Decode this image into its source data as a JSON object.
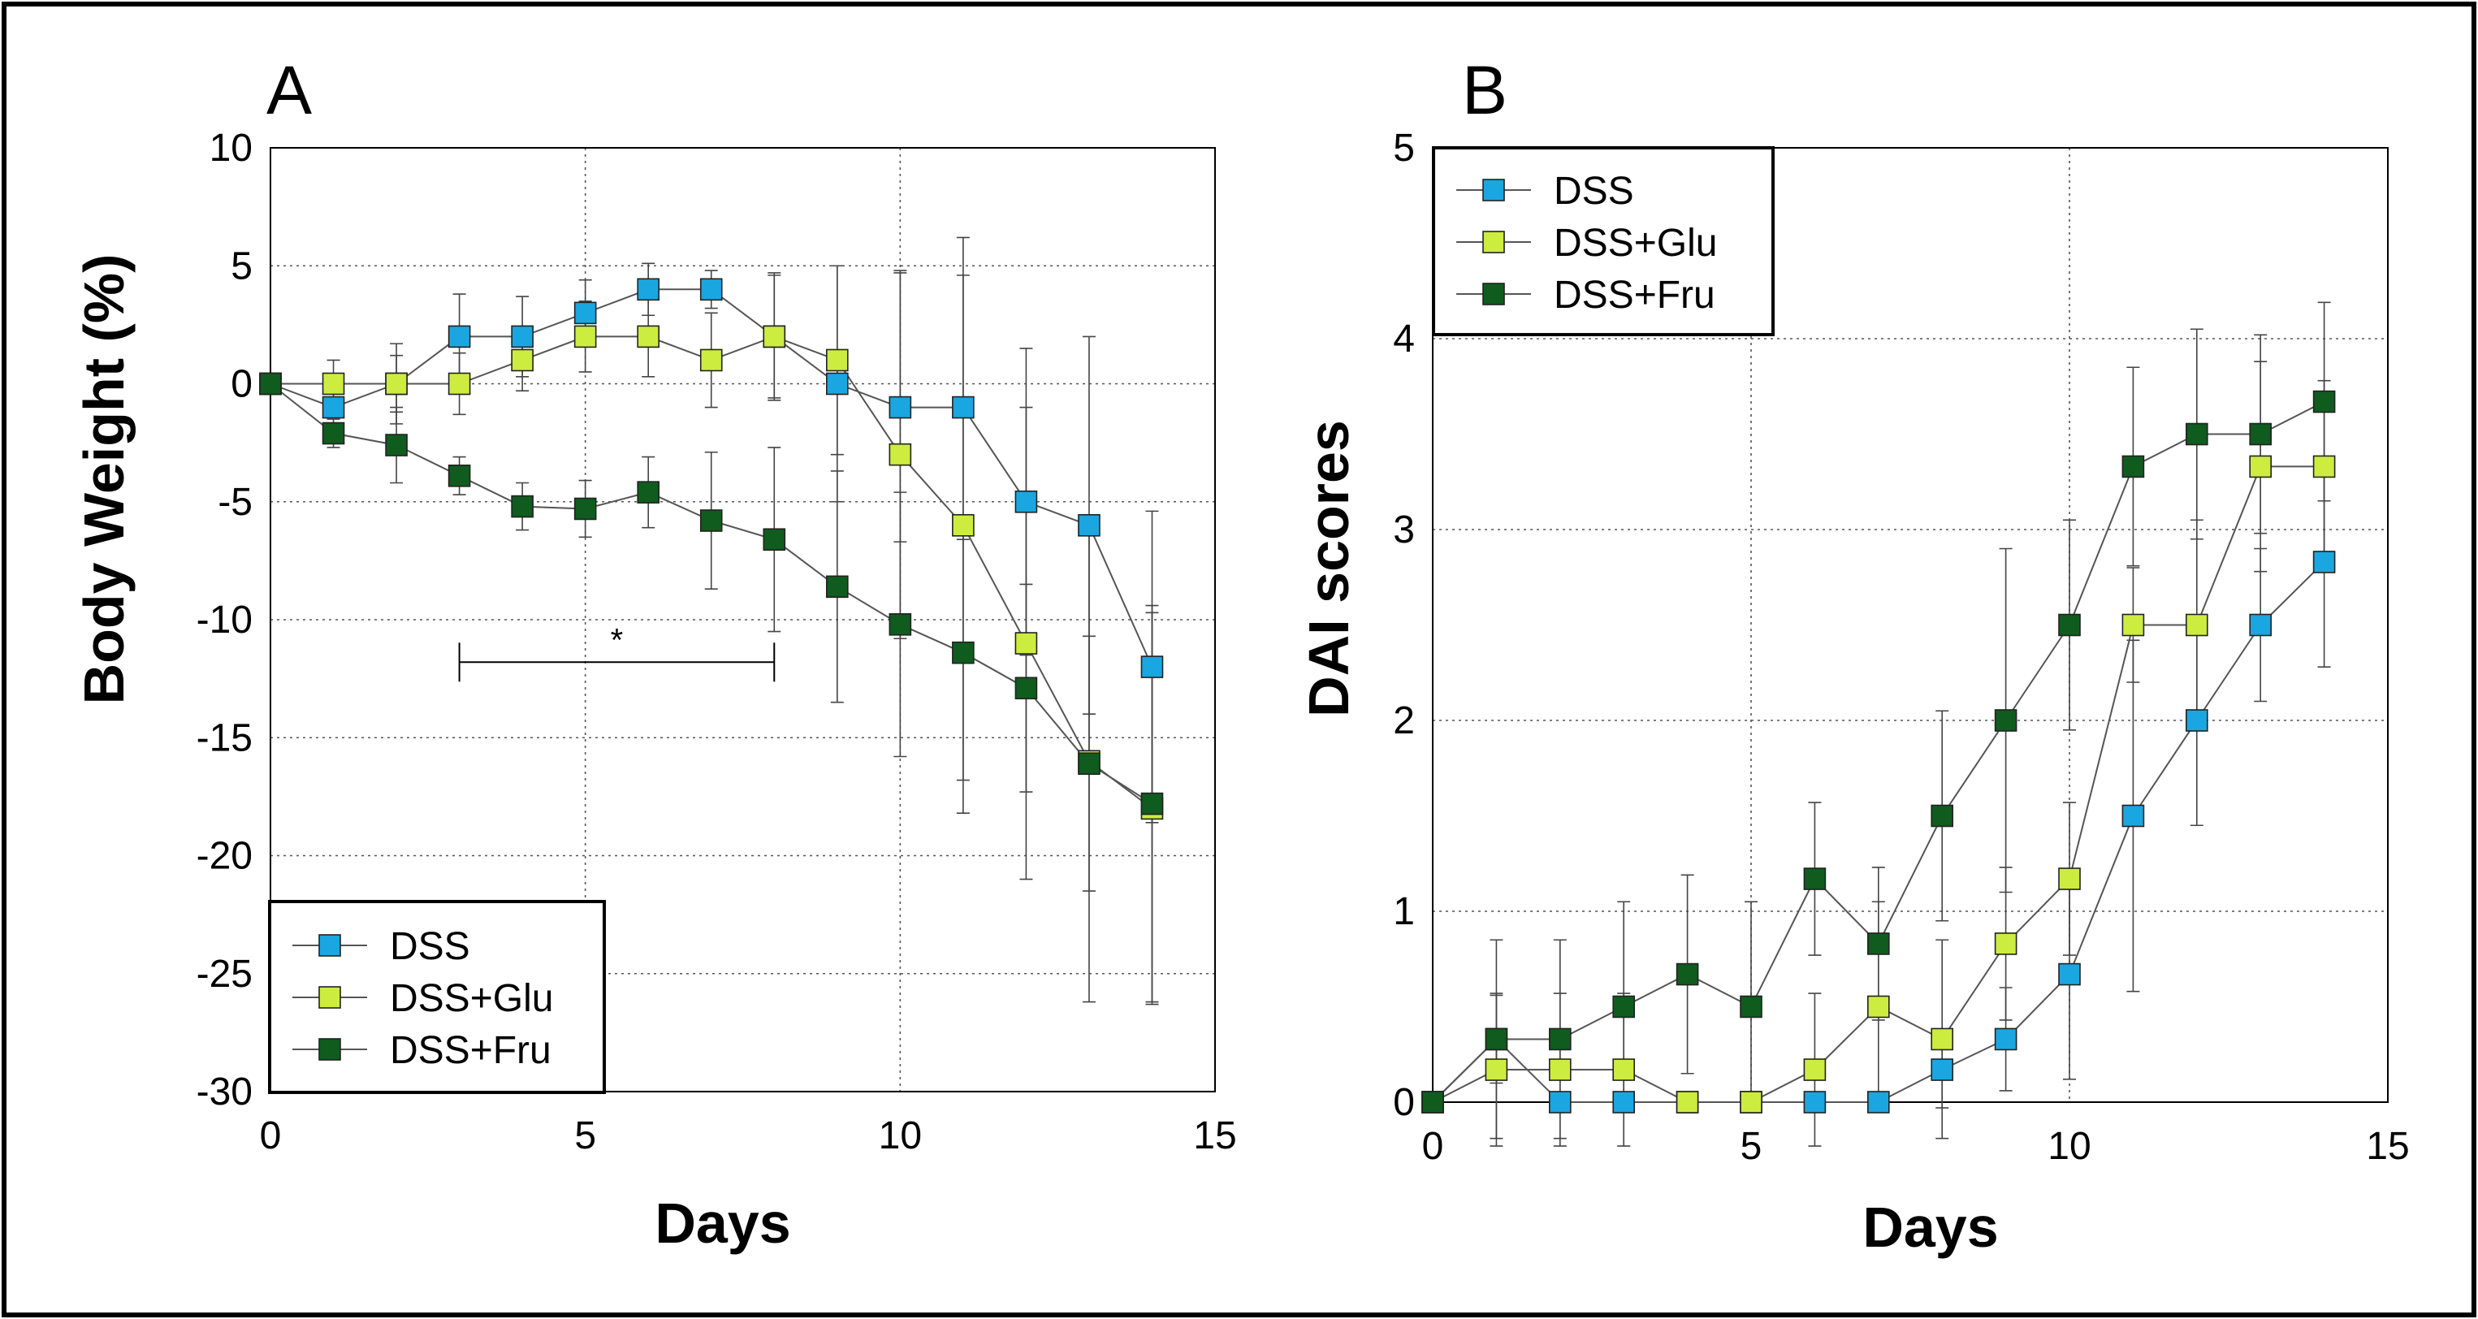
{
  "chart_data": [
    {
      "type": "line",
      "panel_label": "A",
      "xlabel": "Days",
      "ylabel": "Body Weight (%)",
      "xlim": [
        0,
        15
      ],
      "ylim": [
        -30,
        10
      ],
      "xticks": [
        0,
        5,
        10,
        15
      ],
      "yticks": [
        10,
        5,
        0,
        -5,
        -10,
        -15,
        -20,
        -25,
        -30
      ],
      "grid": true,
      "legend_position": "bottom-left",
      "annotation": {
        "text": "*",
        "x_start": 3,
        "x_end": 8,
        "y": -11.8
      },
      "series": [
        {
          "name": "DSS",
          "color": "#1aa6e0",
          "x": [
            0,
            1,
            2,
            3,
            4,
            5,
            6,
            7,
            8,
            9,
            10,
            11,
            12,
            13,
            14
          ],
          "values": [
            0,
            -1,
            0,
            2,
            2,
            3,
            4,
            4,
            2,
            0,
            -1,
            -1,
            -5,
            -6,
            -12
          ],
          "errors": [
            0,
            0,
            1.2,
            1.8,
            1.7,
            1.4,
            1.1,
            0.8,
            2.7,
            5,
            5.7,
            5.6,
            6.5,
            8,
            6.6
          ]
        },
        {
          "name": "DSS+Glu",
          "color": "#ccec40",
          "x": [
            0,
            1,
            2,
            3,
            4,
            5,
            6,
            7,
            8,
            9,
            10,
            11,
            12,
            13,
            14
          ],
          "values": [
            0,
            0,
            0,
            0,
            1,
            2,
            2,
            1,
            2,
            1,
            -3,
            -6,
            -11,
            -16,
            -18
          ],
          "errors": [
            0,
            1,
            1.7,
            1.3,
            1.3,
            1.5,
            1.7,
            2,
            2.6,
            4,
            7.8,
            12.2,
            10,
            10.2,
            8.3
          ]
        },
        {
          "name": "DSS+Fru",
          "color": "#0f5c1e",
          "x": [
            0,
            1,
            2,
            3,
            4,
            5,
            6,
            7,
            8,
            9,
            10,
            11,
            12,
            13,
            14
          ],
          "values": [
            0,
            -2.1,
            -2.6,
            -3.9,
            -5.2,
            -5.3,
            -4.6,
            -5.8,
            -6.6,
            -8.6,
            -10.2,
            -11.4,
            -12.9,
            -16.1,
            -17.8
          ],
          "errors": [
            0,
            0.6,
            1.6,
            0.8,
            1,
            1.2,
            1.5,
            2.9,
            3.9,
            4.9,
            5.6,
            5.4,
            4.4,
            5.4,
            8.4
          ]
        }
      ]
    },
    {
      "type": "line",
      "panel_label": "B",
      "xlabel": "Days",
      "ylabel": "DAI scores",
      "xlim": [
        0,
        15
      ],
      "ylim": [
        0,
        5
      ],
      "xticks": [
        0,
        5,
        10,
        15
      ],
      "yticks": [
        5,
        4,
        3,
        2,
        1,
        0
      ],
      "grid": true,
      "legend_position": "top-left",
      "series": [
        {
          "name": "DSS",
          "color": "#1aa6e0",
          "x": [
            0,
            1,
            2,
            3,
            4,
            5,
            6,
            7,
            8,
            9,
            10,
            11,
            12,
            13,
            14
          ],
          "values": [
            0,
            0.33,
            0,
            0,
            0,
            0,
            0,
            0,
            0.17,
            0.33,
            0.67,
            1.5,
            2,
            2.5,
            2.83
          ],
          "errors": [
            0,
            0.23,
            0,
            0,
            0,
            0,
            0,
            0,
            0.2,
            0.27,
            0.55,
            0.92,
            0.55,
            0.4,
            0.55
          ]
        },
        {
          "name": "DSS+Glu",
          "color": "#ccec40",
          "x": [
            0,
            1,
            2,
            3,
            4,
            5,
            6,
            7,
            8,
            9,
            10,
            11,
            12,
            13,
            14
          ],
          "values": [
            0,
            0.17,
            0.17,
            0.17,
            0,
            0,
            0.17,
            0.5,
            0.33,
            0.83,
            1.17,
            2.5,
            2.5,
            3.33,
            3.33
          ],
          "errors": [
            0,
            0.4,
            0.4,
            0.4,
            0,
            0,
            0.4,
            0.55,
            0.52,
            0.4,
            0.4,
            0.3,
            0.55,
            0.55,
            0.45
          ]
        },
        {
          "name": "DSS+Fru",
          "color": "#0f5c1e",
          "x": [
            0,
            1,
            2,
            3,
            4,
            5,
            6,
            7,
            8,
            9,
            10,
            11,
            12,
            13,
            14
          ],
          "values": [
            0,
            0.33,
            0.33,
            0.5,
            0.67,
            0.5,
            1.17,
            0.83,
            1.5,
            2,
            2.5,
            3.33,
            3.5,
            3.5,
            3.67
          ],
          "errors": [
            0,
            0.52,
            0.52,
            0.55,
            0.52,
            0.55,
            0.4,
            0.4,
            0.55,
            0.9,
            0.55,
            0.52,
            0.55,
            0.52,
            0.52
          ]
        }
      ]
    }
  ]
}
